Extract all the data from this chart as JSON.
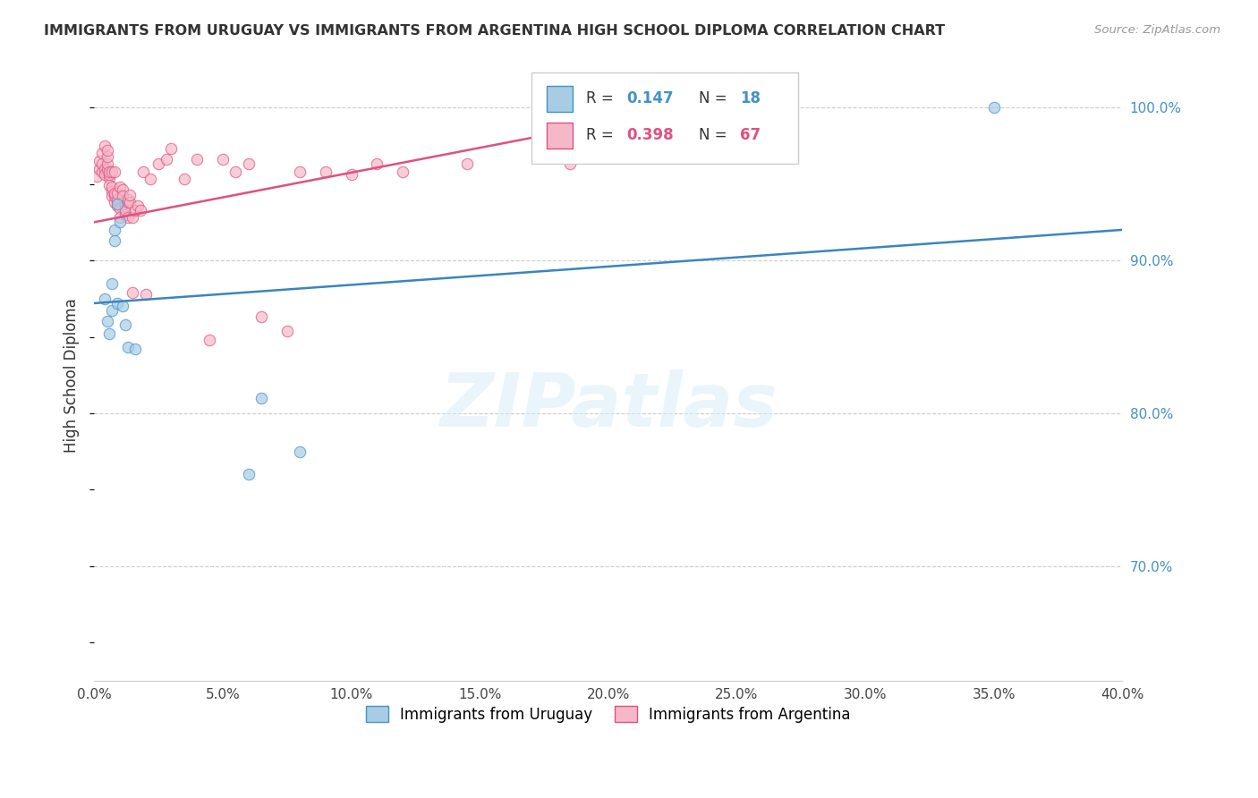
{
  "title": "IMMIGRANTS FROM URUGUAY VS IMMIGRANTS FROM ARGENTINA HIGH SCHOOL DIPLOMA CORRELATION CHART",
  "source": "Source: ZipAtlas.com",
  "ylabel": "High School Diploma",
  "ylabel_right_ticks": [
    "100.0%",
    "90.0%",
    "80.0%",
    "70.0%"
  ],
  "ylabel_right_values": [
    1.0,
    0.9,
    0.8,
    0.7
  ],
  "xmin": 0.0,
  "xmax": 0.4,
  "ymin": 0.625,
  "ymax": 1.025,
  "label_blue": "Immigrants from Uruguay",
  "label_pink": "Immigrants from Argentina",
  "color_blue": "#a8cce4",
  "color_pink": "#f4b8c8",
  "color_blue_edge": "#4292c6",
  "color_pink_edge": "#e05080",
  "color_blue_line": "#3a85c0",
  "color_pink_line": "#e05080",
  "watermark_text": "ZIPatlas",
  "blue_r": "0.147",
  "blue_n": "18",
  "pink_r": "0.398",
  "pink_n": "67",
  "blue_line_x0": 0.0,
  "blue_line_x1": 0.4,
  "blue_line_y0": 0.872,
  "blue_line_y1": 0.92,
  "pink_line_x0": 0.0,
  "pink_line_x1": 0.185,
  "pink_line_y0": 0.925,
  "pink_line_y1": 0.985,
  "blue_scatter_x": [
    0.004,
    0.005,
    0.006,
    0.007,
    0.007,
    0.008,
    0.008,
    0.009,
    0.009,
    0.01,
    0.011,
    0.012,
    0.013,
    0.016,
    0.06,
    0.065,
    0.08,
    0.35
  ],
  "blue_scatter_y": [
    0.875,
    0.86,
    0.852,
    0.885,
    0.867,
    0.92,
    0.913,
    0.937,
    0.872,
    0.925,
    0.87,
    0.858,
    0.843,
    0.842,
    0.76,
    0.81,
    0.775,
    1.0
  ],
  "pink_scatter_x": [
    0.001,
    0.002,
    0.002,
    0.003,
    0.003,
    0.003,
    0.004,
    0.004,
    0.004,
    0.005,
    0.005,
    0.005,
    0.005,
    0.006,
    0.006,
    0.006,
    0.006,
    0.007,
    0.007,
    0.007,
    0.007,
    0.008,
    0.008,
    0.008,
    0.008,
    0.009,
    0.009,
    0.009,
    0.01,
    0.01,
    0.01,
    0.011,
    0.011,
    0.012,
    0.012,
    0.012,
    0.013,
    0.013,
    0.013,
    0.014,
    0.014,
    0.015,
    0.015,
    0.016,
    0.017,
    0.018,
    0.019,
    0.02,
    0.022,
    0.025,
    0.028,
    0.03,
    0.035,
    0.04,
    0.045,
    0.05,
    0.055,
    0.06,
    0.065,
    0.075,
    0.08,
    0.09,
    0.1,
    0.11,
    0.12,
    0.145,
    0.185
  ],
  "pink_scatter_y": [
    0.955,
    0.96,
    0.965,
    0.958,
    0.963,
    0.97,
    0.96,
    0.956,
    0.975,
    0.96,
    0.963,
    0.968,
    0.972,
    0.954,
    0.949,
    0.956,
    0.958,
    0.958,
    0.945,
    0.942,
    0.948,
    0.938,
    0.942,
    0.944,
    0.958,
    0.936,
    0.94,
    0.944,
    0.948,
    0.934,
    0.928,
    0.946,
    0.942,
    0.936,
    0.93,
    0.933,
    0.938,
    0.928,
    0.94,
    0.938,
    0.943,
    0.928,
    0.879,
    0.933,
    0.936,
    0.933,
    0.958,
    0.878,
    0.953,
    0.963,
    0.966,
    0.973,
    0.953,
    0.966,
    0.848,
    0.966,
    0.958,
    0.963,
    0.863,
    0.854,
    0.958,
    0.958,
    0.956,
    0.963,
    0.958,
    0.963,
    0.963
  ]
}
